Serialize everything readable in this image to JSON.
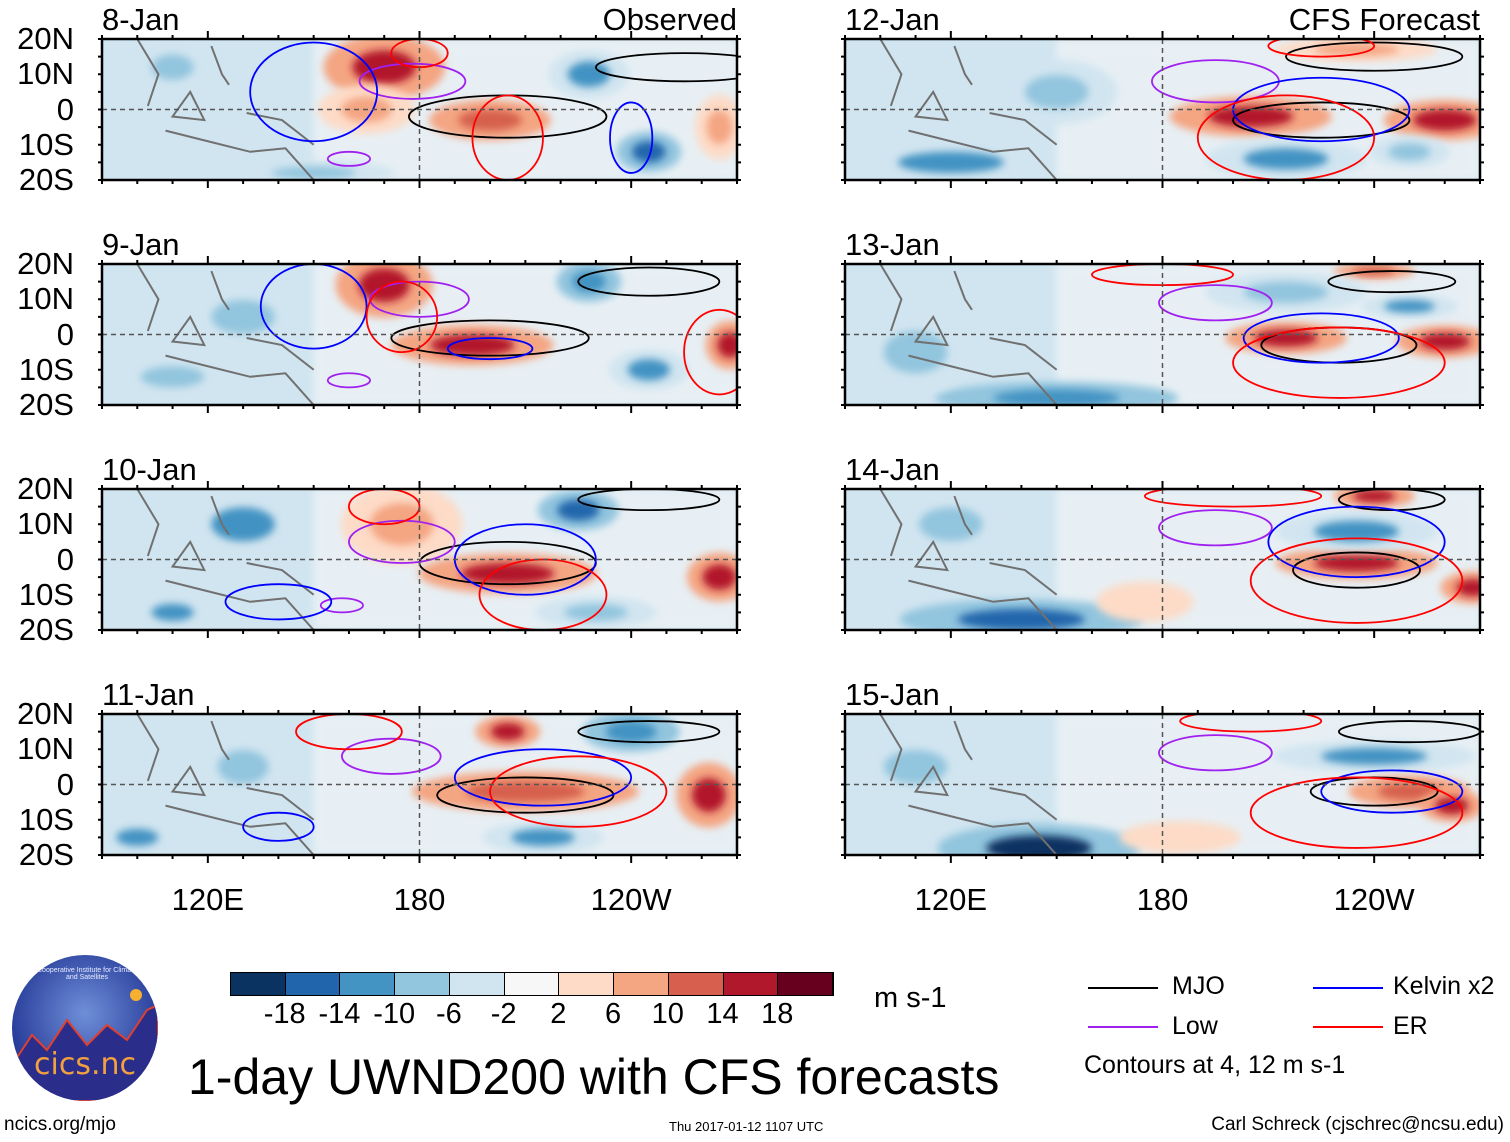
{
  "title": "1-day UWND200 with CFS forecasts",
  "footer": {
    "url": "ncics.org/mjo",
    "timestamp": "Thu 2017-01-12 1107 UTC",
    "author": "Carl Schreck (cjschrec@ncsu.edu)"
  },
  "logo": {
    "text": "cics.nc",
    "ring_text": "Cooperative Institute for Climate and Satellites"
  },
  "legend": {
    "items": [
      {
        "label": "MJO",
        "color": "#000000"
      },
      {
        "label": "Kelvin x2",
        "color": "#0000ff"
      },
      {
        "label": "Low",
        "color": "#a020f0"
      },
      {
        "label": "ER",
        "color": "#ff0000"
      }
    ],
    "note": "Contours at 4, 12 m s-1"
  },
  "chart_data": {
    "type": "heatmap",
    "variable": "200-hPa zonal wind anomaly",
    "units": "m s-1",
    "colorbar": {
      "levels": [
        "-18",
        "-14",
        "-10",
        "-6",
        "-2",
        "2",
        "6",
        "10",
        "14",
        "18"
      ],
      "colors": [
        "#0b3362",
        "#2166ac",
        "#4393c3",
        "#92c5de",
        "#d1e5f0",
        "#f7f7f7",
        "#fddbc7",
        "#f4a582",
        "#d6604d",
        "#b2182b",
        "#67001f"
      ]
    },
    "lat_range": [
      -20,
      20
    ],
    "lon_range": [
      90,
      270
    ],
    "lat_ticks": [
      "20N",
      "10N",
      "0",
      "10S",
      "20S"
    ],
    "lon_ticks": [
      {
        "lon": 120,
        "label": "120E"
      },
      {
        "lon": 180,
        "label": "180"
      },
      {
        "lon": 240,
        "label": "120W"
      }
    ],
    "columns": [
      {
        "label": "Observed"
      },
      {
        "label": "CFS Forecast"
      }
    ],
    "panels": [
      {
        "date": "8-Jan",
        "col": 0,
        "blobs": [
          [
            170,
            12,
            15,
            8,
            16
          ],
          [
            165,
            0,
            12,
            6,
            10
          ],
          [
            200,
            -3,
            15,
            5,
            14
          ],
          [
            245,
            -12,
            8,
            5,
            -16
          ],
          [
            110,
            12,
            10,
            6,
            -8
          ],
          [
            228,
            10,
            10,
            6,
            -10
          ],
          [
            265,
            -5,
            6,
            8,
            10
          ],
          [
            150,
            -18,
            20,
            3,
            -8
          ],
          [
            125,
            -10,
            12,
            5,
            -5
          ]
        ],
        "contours": [
          [
            "MJO",
            205,
            -2,
            28,
            6
          ],
          [
            "MJO",
            255,
            12,
            25,
            4
          ],
          [
            "Low",
            178,
            8,
            15,
            5
          ],
          [
            "Low",
            160,
            -14,
            6,
            2
          ],
          [
            "Kelvin",
            150,
            5,
            18,
            14
          ],
          [
            "Kelvin",
            240,
            -8,
            6,
            10
          ],
          [
            "ER",
            205,
            -8,
            10,
            12
          ],
          [
            "ER",
            180,
            16,
            8,
            4
          ]
        ]
      },
      {
        "date": "9-Jan",
        "col": 0,
        "blobs": [
          [
            170,
            14,
            12,
            8,
            16
          ],
          [
            195,
            -3,
            20,
            5,
            16
          ],
          [
            268,
            -3,
            6,
            6,
            16
          ],
          [
            228,
            15,
            8,
            5,
            -12
          ],
          [
            130,
            5,
            15,
            8,
            -8
          ],
          [
            245,
            -10,
            10,
            5,
            -10
          ],
          [
            110,
            -12,
            15,
            5,
            -8
          ]
        ],
        "contours": [
          [
            "MJO",
            200,
            -1,
            28,
            5
          ],
          [
            "MJO",
            245,
            15,
            20,
            4
          ],
          [
            "Low",
            180,
            10,
            14,
            5
          ],
          [
            "Low",
            160,
            -13,
            6,
            2
          ],
          [
            "Kelvin",
            200,
            -4,
            12,
            3
          ],
          [
            "Kelvin",
            150,
            8,
            15,
            12
          ],
          [
            "ER",
            265,
            -5,
            10,
            12
          ],
          [
            "ER",
            175,
            5,
            10,
            10
          ]
        ]
      },
      {
        "date": "10-Jan",
        "col": 0,
        "blobs": [
          [
            175,
            10,
            15,
            10,
            8
          ],
          [
            205,
            -4,
            22,
            5,
            16
          ],
          [
            265,
            -5,
            8,
            6,
            16
          ],
          [
            225,
            14,
            10,
            5,
            -16
          ],
          [
            130,
            10,
            15,
            8,
            -10
          ],
          [
            230,
            -15,
            15,
            4,
            -8
          ],
          [
            110,
            -15,
            10,
            4,
            -10
          ]
        ],
        "contours": [
          [
            "MJO",
            205,
            -1,
            25,
            6
          ],
          [
            "MJO",
            245,
            17,
            20,
            3
          ],
          [
            "Low",
            175,
            5,
            15,
            6
          ],
          [
            "Low",
            158,
            -13,
            6,
            2
          ],
          [
            "Kelvin",
            210,
            0,
            20,
            10
          ],
          [
            "Kelvin",
            140,
            -12,
            15,
            5
          ],
          [
            "ER",
            215,
            -10,
            18,
            10
          ],
          [
            "ER",
            170,
            15,
            10,
            5
          ]
        ]
      },
      {
        "date": "11-Jan",
        "col": 0,
        "blobs": [
          [
            205,
            15,
            8,
            4,
            16
          ],
          [
            210,
            -2,
            28,
            5,
            14
          ],
          [
            262,
            -3,
            8,
            8,
            18
          ],
          [
            240,
            15,
            12,
            5,
            -12
          ],
          [
            130,
            5,
            12,
            8,
            -8
          ],
          [
            215,
            -15,
            15,
            4,
            -10
          ],
          [
            100,
            -15,
            10,
            4,
            -10
          ]
        ],
        "contours": [
          [
            "MJO",
            210,
            -3,
            25,
            5
          ],
          [
            "MJO",
            245,
            15,
            20,
            3
          ],
          [
            "Low",
            172,
            8,
            14,
            5
          ],
          [
            "Kelvin",
            215,
            2,
            25,
            8
          ],
          [
            "Kelvin",
            140,
            -12,
            10,
            4
          ],
          [
            "ER",
            225,
            -2,
            25,
            10
          ],
          [
            "ER",
            160,
            15,
            15,
            5
          ]
        ]
      },
      {
        "date": "12-Jan",
        "col": 1,
        "blobs": [
          [
            205,
            -2,
            20,
            5,
            16
          ],
          [
            260,
            -3,
            15,
            5,
            18
          ],
          [
            235,
            17,
            20,
            3,
            8
          ],
          [
            120,
            -15,
            25,
            5,
            -10
          ],
          [
            150,
            5,
            15,
            8,
            -8
          ],
          [
            215,
            -14,
            20,
            5,
            -10
          ],
          [
            250,
            -12,
            10,
            4,
            -8
          ]
        ],
        "contours": [
          [
            "MJO",
            225,
            -3,
            25,
            5
          ],
          [
            "MJO",
            240,
            15,
            25,
            4
          ],
          [
            "Low",
            195,
            8,
            18,
            6
          ],
          [
            "Kelvin",
            225,
            0,
            25,
            9
          ],
          [
            "ER",
            215,
            -8,
            25,
            12
          ],
          [
            "ER",
            225,
            18,
            15,
            3
          ]
        ]
      },
      {
        "date": "13-Jan",
        "col": 1,
        "blobs": [
          [
            215,
            -1,
            15,
            4,
            16
          ],
          [
            260,
            -2,
            12,
            4,
            18
          ],
          [
            240,
            18,
            10,
            2,
            14
          ],
          [
            150,
            -18,
            30,
            4,
            -12
          ],
          [
            215,
            12,
            20,
            5,
            -8
          ],
          [
            250,
            8,
            12,
            3,
            -10
          ],
          [
            110,
            -5,
            15,
            10,
            -6
          ]
        ],
        "contours": [
          [
            "MJO",
            230,
            -3,
            22,
            5
          ],
          [
            "MJO",
            245,
            15,
            18,
            3
          ],
          [
            "Low",
            195,
            9,
            16,
            5
          ],
          [
            "Kelvin",
            225,
            -1,
            22,
            7
          ],
          [
            "ER",
            230,
            -8,
            30,
            10
          ],
          [
            "ER",
            180,
            17,
            20,
            3
          ]
        ]
      },
      {
        "date": "14-Jan",
        "col": 1,
        "blobs": [
          [
            240,
            18,
            10,
            3,
            16
          ],
          [
            235,
            -1,
            20,
            4,
            16
          ],
          [
            268,
            -8,
            8,
            4,
            18
          ],
          [
            140,
            -17,
            30,
            5,
            -14
          ],
          [
            235,
            8,
            20,
            5,
            -10
          ],
          [
            120,
            10,
            15,
            8,
            -8
          ],
          [
            175,
            -12,
            12,
            5,
            6
          ]
        ],
        "contours": [
          [
            "MJO",
            235,
            -3,
            18,
            5
          ],
          [
            "MJO",
            245,
            17,
            15,
            3
          ],
          [
            "Low",
            195,
            9,
            16,
            5
          ],
          [
            "Kelvin",
            235,
            5,
            25,
            10
          ],
          [
            "ER",
            235,
            -6,
            30,
            12
          ],
          [
            "ER",
            200,
            18,
            25,
            3
          ]
        ]
      },
      {
        "date": "15-Jan",
        "col": 1,
        "blobs": [
          [
            145,
            -18,
            25,
            6,
            -18
          ],
          [
            240,
            8,
            25,
            4,
            -10
          ],
          [
            250,
            -2,
            15,
            4,
            14
          ],
          [
            262,
            -6,
            8,
            4,
            16
          ],
          [
            185,
            -15,
            15,
            4,
            6
          ],
          [
            110,
            5,
            15,
            8,
            -6
          ]
        ],
        "contours": [
          [
            "MJO",
            240,
            -2,
            18,
            4
          ],
          [
            "MJO",
            250,
            15,
            20,
            3
          ],
          [
            "Low",
            195,
            9,
            16,
            5
          ],
          [
            "Kelvin",
            245,
            -2,
            20,
            6
          ],
          [
            "ER",
            235,
            -8,
            30,
            10
          ],
          [
            "ER",
            205,
            18,
            20,
            3
          ]
        ]
      }
    ]
  }
}
